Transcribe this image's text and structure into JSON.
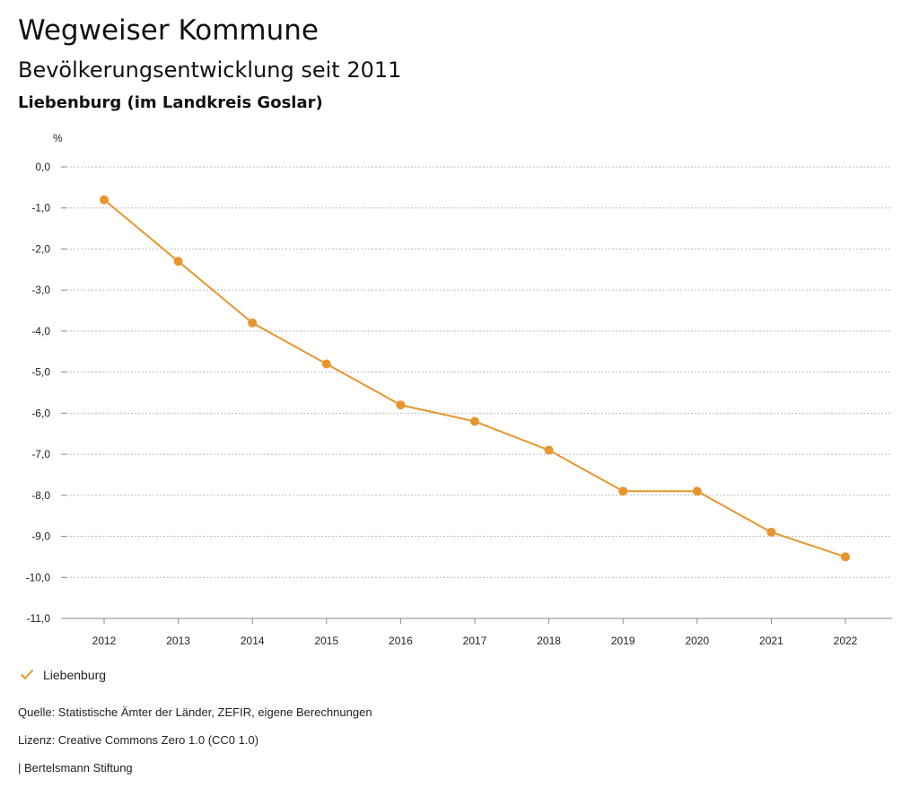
{
  "header": {
    "title": "Wegweiser Kommune",
    "subtitle": "Bevölkerungsentwicklung seit 2011",
    "place": "Liebenburg (im Landkreis Goslar)"
  },
  "chart_data": {
    "type": "line",
    "ylabel": "%",
    "x": [
      "2012",
      "2013",
      "2014",
      "2015",
      "2016",
      "2017",
      "2018",
      "2019",
      "2020",
      "2021",
      "2022"
    ],
    "series": [
      {
        "name": "Liebenburg",
        "color": "#E8952E",
        "values": [
          -0.8,
          -2.3,
          -3.8,
          -4.8,
          -5.8,
          -6.2,
          -6.9,
          -7.9,
          -7.9,
          -8.9,
          -9.5
        ]
      }
    ],
    "ylim": [
      -11,
      0
    ],
    "yticks": [
      "0,0",
      "-1,0",
      "-2,0",
      "-3,0",
      "-4,0",
      "-5,0",
      "-6,0",
      "-7,0",
      "-8,0",
      "-9,0",
      "-10,0",
      "-11,0"
    ],
    "grid": true,
    "legend_position": "bottom-left"
  },
  "legend": {
    "label": "Liebenburg",
    "icon": "check-icon"
  },
  "footer": {
    "source": "Quelle: Statistische Ämter der Länder, ZEFIR, eigene Berechnungen",
    "license": "Lizenz: Creative Commons Zero 1.0 (CC0 1.0)",
    "publisher": "| Bertelsmann Stiftung"
  }
}
